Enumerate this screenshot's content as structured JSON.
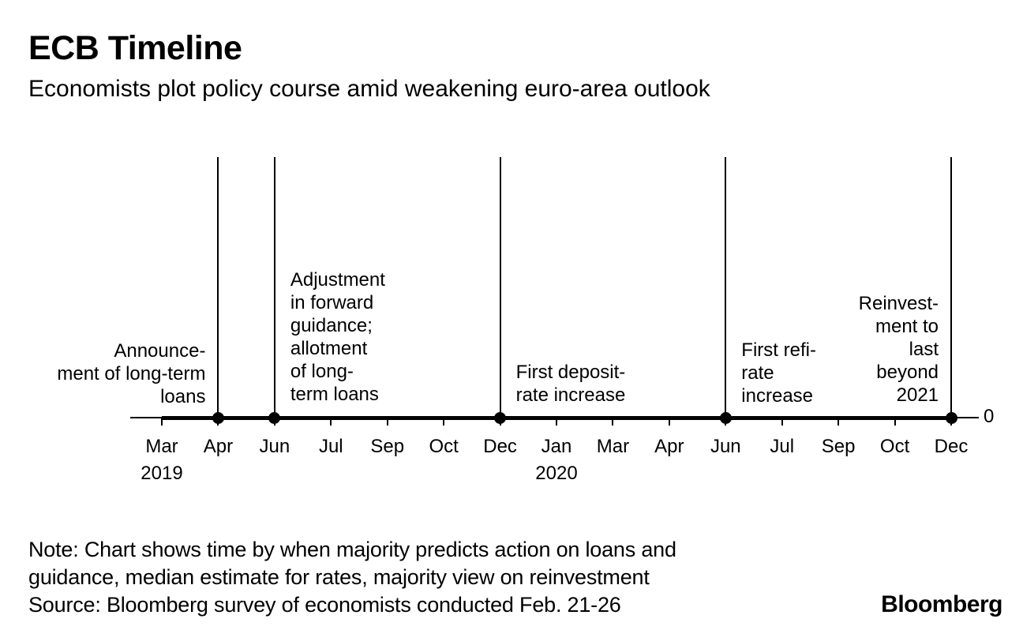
{
  "header": {
    "title": "ECB Timeline",
    "subtitle": "Economists plot policy course amid weakening euro-area outlook"
  },
  "chart_data": {
    "type": "timeline",
    "title": "ECB Timeline",
    "subtitle": "Economists plot policy course amid weakening euro-area outlook",
    "x_axis": {
      "tick_labels": [
        "Mar",
        "Apr",
        "Jun",
        "Jul",
        "Sep",
        "Oct",
        "Dec",
        "Jan",
        "Mar",
        "Apr",
        "Jun",
        "Jul",
        "Sep",
        "Oct",
        "Dec"
      ],
      "year_labels": [
        {
          "text": "2019",
          "tick_index": 0
        },
        {
          "text": "2020",
          "tick_index": 7
        }
      ],
      "range_note": "Mar 2019 through Dec 2020"
    },
    "y_axis": {
      "right_label": "0"
    },
    "events": [
      {
        "date": "Apr 2019",
        "tick_index": 1,
        "label": "Announcement of long-term loans",
        "label_lines": [
          "Announce-",
          "ment of long-term",
          "loans"
        ],
        "label_side": "left",
        "text_align": "right"
      },
      {
        "date": "Jun 2019",
        "tick_index": 2,
        "label": "Adjustment in forward guidance; allotment of long-term loans",
        "label_lines": [
          "Adjustment",
          "in forward",
          "guidance;",
          "allotment",
          "of long-",
          "term loans"
        ],
        "label_side": "right",
        "text_align": "left"
      },
      {
        "date": "Dec 2019",
        "tick_index": 6,
        "label": "First deposit-rate increase",
        "label_lines": [
          "First deposit-",
          "rate increase"
        ],
        "label_side": "right",
        "text_align": "left"
      },
      {
        "date": "Jun 2020",
        "tick_index": 10,
        "label": "First refi-rate increase",
        "label_lines": [
          "First refi-",
          "rate",
          "increase"
        ],
        "label_side": "right",
        "text_align": "left"
      },
      {
        "date": "Dec 2020",
        "tick_index": 14,
        "label": "Reinvestment to last beyond 2021",
        "label_lines": [
          "Reinvest-",
          "ment to",
          "last",
          "beyond",
          "2021"
        ],
        "label_side": "left",
        "text_align": "right"
      }
    ],
    "colors": {
      "line": "#000000",
      "marker": "#000000",
      "text": "#000000",
      "background": "#ffffff"
    }
  },
  "footer": {
    "note_lines": [
      "Note: Chart shows time by when majority predicts action on loans and",
      "guidance, median estimate for rates, majority view on reinvestment",
      "Source: Bloomberg survey of economists conducted Feb. 21-26"
    ],
    "brand": "Bloomberg"
  }
}
